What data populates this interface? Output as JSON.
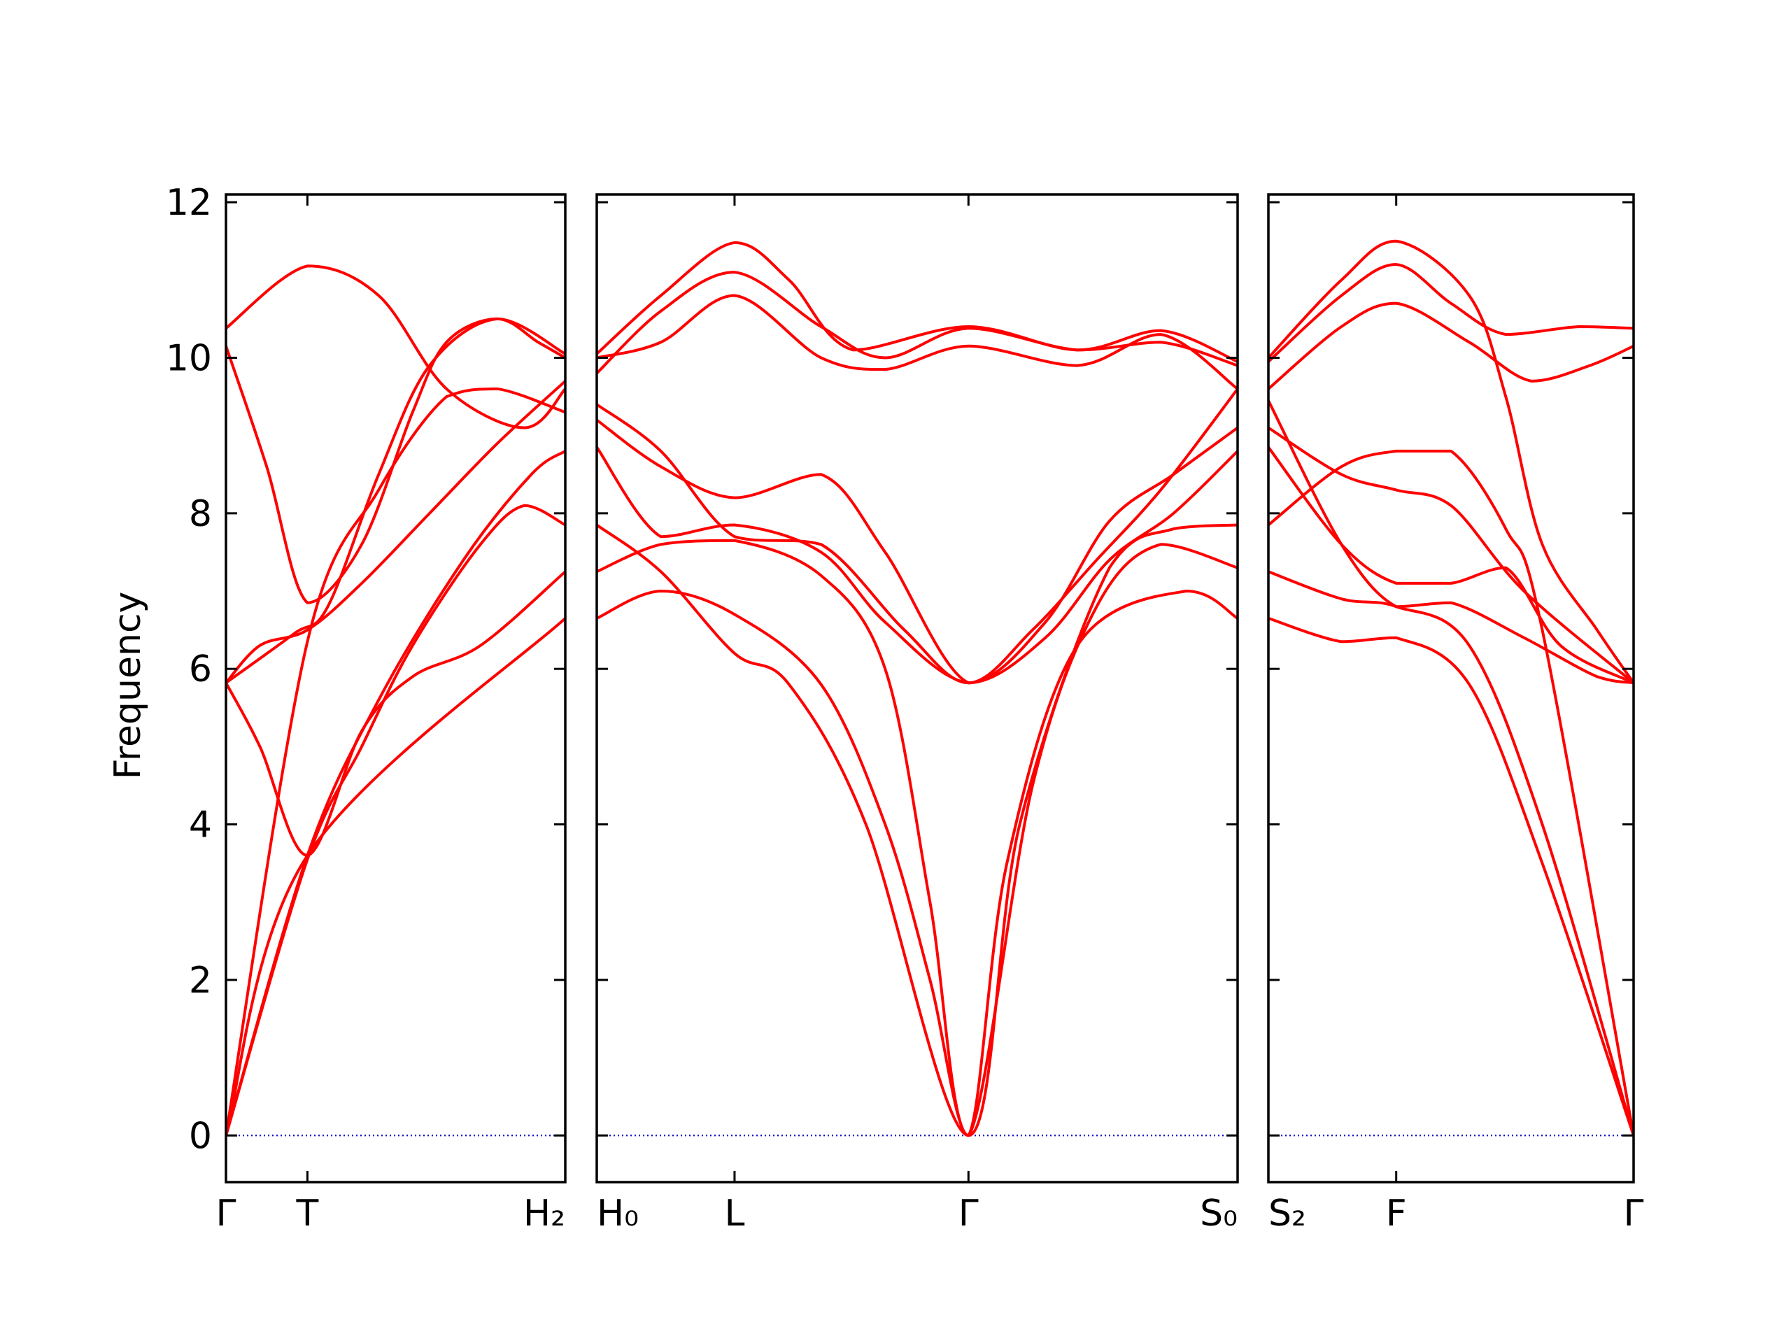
{
  "chart_data": {
    "type": "line",
    "ylabel": "Frequency",
    "ylim": [
      -0.6,
      12.1
    ],
    "yticks": [
      "0",
      "2",
      "4",
      "6",
      "8",
      "10",
      "12"
    ],
    "colors": {
      "bands": "#ff0000",
      "zero_line": "#0000cc",
      "axes": "#000000"
    },
    "grid": false,
    "legend": "none",
    "panels": [
      {
        "xticks": [
          {
            "x": 0.0,
            "label": "Γ"
          },
          {
            "x": 0.24,
            "label": "T"
          },
          {
            "x": 1.0,
            "label": "H₂"
          }
        ],
        "bands": [
          [
            [
              0,
              0
            ],
            [
              0.24,
              3.6
            ],
            [
              1,
              6.65
            ]
          ],
          [
            [
              0,
              0
            ],
            [
              0.24,
              3.55
            ],
            [
              0.4,
              5.0
            ],
            [
              0.55,
              6.3
            ],
            [
              0.75,
              7.6
            ],
            [
              0.88,
              8.1
            ],
            [
              1,
              7.85
            ]
          ],
          [
            [
              0,
              0
            ],
            [
              0.24,
              6.35
            ],
            [
              0.45,
              8.3
            ],
            [
              0.65,
              9.5
            ],
            [
              0.8,
              9.6
            ],
            [
              1,
              9.3
            ]
          ],
          [
            [
              0,
              5.82
            ],
            [
              0.1,
              6.3
            ],
            [
              0.24,
              6.5
            ],
            [
              0.4,
              7.1
            ],
            [
              0.6,
              8.0
            ],
            [
              0.8,
              8.9
            ],
            [
              1,
              9.7
            ]
          ],
          [
            [
              0,
              5.82
            ],
            [
              0.1,
              5.0
            ],
            [
              0.24,
              3.6
            ],
            [
              0.4,
              5.2
            ],
            [
              0.55,
              5.9
            ],
            [
              0.75,
              6.3
            ],
            [
              1,
              7.25
            ]
          ],
          [
            [
              0,
              10.15
            ],
            [
              0.12,
              8.6
            ],
            [
              0.24,
              6.85
            ],
            [
              0.4,
              7.6
            ],
            [
              0.55,
              9.3
            ],
            [
              0.65,
              10.2
            ],
            [
              0.8,
              10.5
            ],
            [
              0.92,
              10.2
            ],
            [
              1,
              10.0
            ]
          ],
          [
            [
              0,
              10.38
            ],
            [
              0.24,
              11.18
            ],
            [
              0.45,
              10.8
            ],
            [
              0.65,
              9.6
            ],
            [
              0.88,
              9.1
            ],
            [
              1,
              9.6
            ]
          ],
          [
            [
              0,
              5.82
            ],
            [
              0.2,
              6.45
            ],
            [
              0.3,
              6.8
            ],
            [
              0.45,
              8.5
            ],
            [
              0.6,
              9.9
            ],
            [
              0.8,
              10.5
            ],
            [
              1,
              10.05
            ]
          ],
          [
            [
              0,
              0
            ],
            [
              0.24,
              3.6
            ],
            [
              0.45,
              5.6
            ],
            [
              0.7,
              7.4
            ],
            [
              0.9,
              8.5
            ],
            [
              1,
              8.8
            ]
          ]
        ]
      },
      {
        "xticks": [
          {
            "x": 0.0,
            "label": "H₀"
          },
          {
            "x": 0.215,
            "label": "L"
          },
          {
            "x": 0.58,
            "label": "Γ"
          },
          {
            "x": 1.0,
            "label": "S₀"
          }
        ],
        "bands": [
          [
            [
              0,
              6.65
            ],
            [
              0.1,
              7.0
            ],
            [
              0.215,
              6.7
            ],
            [
              0.35,
              5.8
            ],
            [
              0.45,
              4.0
            ],
            [
              0.52,
              2.0
            ],
            [
              0.58,
              0.0
            ],
            [
              0.64,
              3.5
            ],
            [
              0.75,
              6.3
            ],
            [
              0.92,
              7.0
            ],
            [
              1,
              6.65
            ]
          ],
          [
            [
              0,
              7.25
            ],
            [
              0.1,
              7.6
            ],
            [
              0.215,
              7.65
            ],
            [
              0.35,
              7.2
            ],
            [
              0.45,
              6.0
            ],
            [
              0.52,
              3.0
            ],
            [
              0.58,
              0.0
            ],
            [
              0.68,
              4.5
            ],
            [
              0.78,
              6.8
            ],
            [
              0.88,
              7.6
            ],
            [
              1,
              7.3
            ]
          ],
          [
            [
              0,
              7.85
            ],
            [
              0.1,
              7.25
            ],
            [
              0.215,
              6.2
            ],
            [
              0.3,
              5.8
            ],
            [
              0.42,
              4.0
            ],
            [
              0.58,
              0.0
            ],
            [
              0.66,
              4.0
            ],
            [
              0.8,
              7.3
            ],
            [
              0.9,
              7.8
            ],
            [
              1,
              7.85
            ]
          ],
          [
            [
              0,
              8.85
            ],
            [
              0.1,
              7.7
            ],
            [
              0.215,
              7.85
            ],
            [
              0.35,
              7.5
            ],
            [
              0.45,
              6.6
            ],
            [
              0.58,
              5.82
            ],
            [
              0.7,
              6.4
            ],
            [
              0.8,
              7.4
            ],
            [
              0.9,
              8.0
            ],
            [
              1,
              8.8
            ]
          ],
          [
            [
              0,
              9.2
            ],
            [
              0.1,
              8.6
            ],
            [
              0.215,
              8.2
            ],
            [
              0.35,
              8.5
            ],
            [
              0.45,
              7.5
            ],
            [
              0.58,
              5.82
            ],
            [
              0.7,
              6.6
            ],
            [
              0.8,
              7.9
            ],
            [
              0.9,
              8.5
            ],
            [
              1,
              9.1
            ]
          ],
          [
            [
              0,
              9.4
            ],
            [
              0.1,
              8.8
            ],
            [
              0.215,
              7.7
            ],
            [
              0.35,
              7.6
            ],
            [
              0.48,
              6.5
            ],
            [
              0.58,
              5.82
            ],
            [
              0.68,
              6.5
            ],
            [
              0.78,
              7.4
            ],
            [
              0.88,
              8.3
            ],
            [
              1,
              9.6
            ]
          ],
          [
            [
              0,
              9.8
            ],
            [
              0.1,
              10.6
            ],
            [
              0.215,
              11.1
            ],
            [
              0.35,
              10.4
            ],
            [
              0.45,
              10.0
            ],
            [
              0.58,
              10.38
            ],
            [
              0.75,
              10.1
            ],
            [
              0.88,
              10.2
            ],
            [
              1,
              9.9
            ]
          ],
          [
            [
              0,
              10.0
            ],
            [
              0.1,
              10.2
            ],
            [
              0.215,
              10.8
            ],
            [
              0.35,
              10.0
            ],
            [
              0.45,
              9.85
            ],
            [
              0.58,
              10.15
            ],
            [
              0.75,
              9.9
            ],
            [
              0.88,
              10.3
            ],
            [
              1,
              9.6
            ]
          ],
          [
            [
              0,
              10.05
            ],
            [
              0.1,
              10.8
            ],
            [
              0.215,
              11.48
            ],
            [
              0.3,
              11.0
            ],
            [
              0.4,
              10.1
            ],
            [
              0.58,
              10.4
            ],
            [
              0.75,
              10.1
            ],
            [
              0.88,
              10.35
            ],
            [
              1,
              9.95
            ]
          ]
        ]
      },
      {
        "xticks": [
          {
            "x": 0.0,
            "label": "S₂"
          },
          {
            "x": 0.35,
            "label": "F"
          },
          {
            "x": 1.0,
            "label": "Γ"
          }
        ],
        "bands": [
          [
            [
              0,
              6.65
            ],
            [
              0.2,
              6.35
            ],
            [
              0.35,
              6.4
            ],
            [
              0.55,
              5.8
            ],
            [
              0.75,
              3.5
            ],
            [
              1,
              0.0
            ]
          ],
          [
            [
              0,
              7.25
            ],
            [
              0.2,
              6.9
            ],
            [
              0.35,
              6.8
            ],
            [
              0.55,
              6.3
            ],
            [
              0.75,
              4.0
            ],
            [
              1,
              0.0
            ]
          ],
          [
            [
              0,
              7.85
            ],
            [
              0.2,
              8.6
            ],
            [
              0.35,
              8.8
            ],
            [
              0.5,
              8.8
            ],
            [
              0.65,
              7.8
            ],
            [
              0.75,
              6.5
            ],
            [
              1,
              0.0
            ]
          ],
          [
            [
              0,
              8.85
            ],
            [
              0.2,
              7.6
            ],
            [
              0.35,
              7.1
            ],
            [
              0.5,
              7.1
            ],
            [
              0.65,
              7.3
            ],
            [
              0.8,
              6.3
            ],
            [
              1,
              5.82
            ]
          ],
          [
            [
              0,
              9.1
            ],
            [
              0.2,
              8.5
            ],
            [
              0.35,
              8.3
            ],
            [
              0.5,
              8.1
            ],
            [
              0.7,
              7.0
            ],
            [
              1,
              5.82
            ]
          ],
          [
            [
              0,
              9.45
            ],
            [
              0.2,
              7.6
            ],
            [
              0.35,
              6.8
            ],
            [
              0.5,
              6.85
            ],
            [
              0.7,
              6.4
            ],
            [
              0.9,
              5.9
            ],
            [
              1,
              5.82
            ]
          ],
          [
            [
              0,
              9.95
            ],
            [
              0.2,
              10.8
            ],
            [
              0.35,
              11.2
            ],
            [
              0.5,
              10.7
            ],
            [
              0.65,
              10.3
            ],
            [
              0.85,
              10.4
            ],
            [
              1,
              10.38
            ]
          ],
          [
            [
              0,
              9.6
            ],
            [
              0.2,
              10.4
            ],
            [
              0.35,
              10.7
            ],
            [
              0.55,
              10.2
            ],
            [
              0.72,
              9.7
            ],
            [
              0.88,
              9.9
            ],
            [
              1,
              10.15
            ]
          ],
          [
            [
              0,
              10.0
            ],
            [
              0.2,
              11.0
            ],
            [
              0.35,
              11.5
            ],
            [
              0.55,
              10.8
            ],
            [
              0.65,
              9.5
            ],
            [
              0.75,
              7.6
            ],
            [
              0.9,
              6.5
            ],
            [
              1,
              5.82
            ]
          ]
        ]
      }
    ]
  }
}
